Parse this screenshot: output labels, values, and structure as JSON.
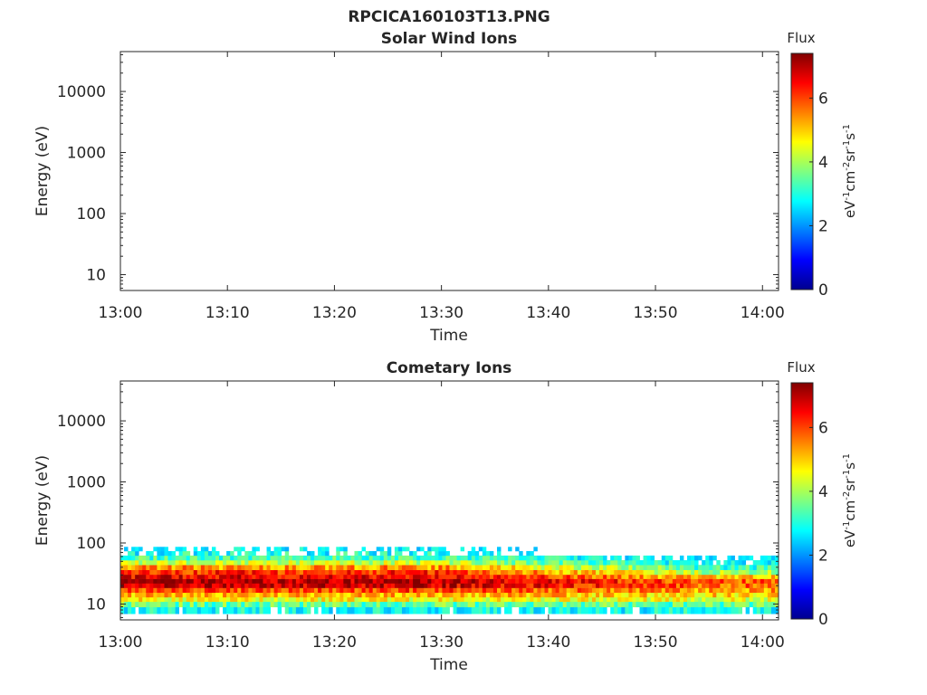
{
  "figure": {
    "title": "RPCICA160103T13.PNG"
  },
  "panels": [
    {
      "title": "Solar Wind Ions",
      "xlabel": "Time",
      "ylabel": "Energy (eV)",
      "colorbar": {
        "title": "Flux",
        "unit_base": [
          "eV",
          "cm",
          "sr",
          "s"
        ],
        "unit_exp": [
          "-1",
          "-2",
          "-1",
          "-1"
        ],
        "ticks": [
          "0",
          "2",
          "4",
          "6"
        ]
      }
    },
    {
      "title": "Cometary Ions",
      "xlabel": "Time",
      "ylabel": "Energy (eV)",
      "colorbar": {
        "title": "Flux",
        "unit_base": [
          "eV",
          "cm",
          "sr",
          "s"
        ],
        "unit_exp": [
          "-1",
          "-2",
          "-1",
          "-1"
        ],
        "ticks": [
          "0",
          "2",
          "4",
          "6"
        ]
      }
    }
  ],
  "chart_data": [
    {
      "type": "heatmap",
      "title": "Solar Wind Ions",
      "xlabel": "Time",
      "ylabel": "Energy (eV)",
      "x_ticks": [
        "13:00",
        "13:10",
        "13:20",
        "13:30",
        "13:40",
        "13:50",
        "14:00"
      ],
      "x_range_min": [
        0,
        61.5
      ],
      "y_scale": "log",
      "y_ticks": [
        10,
        100,
        1000,
        10000
      ],
      "y_tick_labels": [
        "10",
        "100",
        "1000",
        "10000"
      ],
      "ylim": [
        5.5,
        45000
      ],
      "colorbar": {
        "label": "Flux",
        "range": [
          0,
          7.4
        ],
        "ticks": [
          0,
          2,
          4,
          6
        ],
        "colormap": "jet"
      },
      "data": "empty"
    },
    {
      "type": "heatmap",
      "title": "Cometary Ions",
      "xlabel": "Time",
      "ylabel": "Energy (eV)",
      "x_ticks": [
        "13:00",
        "13:10",
        "13:20",
        "13:30",
        "13:40",
        "13:50",
        "14:00"
      ],
      "x_range_min": [
        0,
        61.5
      ],
      "y_scale": "log",
      "y_ticks": [
        10,
        100,
        1000,
        10000
      ],
      "y_tick_labels": [
        "10",
        "100",
        "1000",
        "10000"
      ],
      "ylim": [
        5.5,
        45000
      ],
      "colorbar": {
        "label": "Flux",
        "range": [
          0,
          7.4
        ],
        "ticks": [
          0,
          2,
          4,
          6
        ],
        "colormap": "jet"
      },
      "energy_profile_eV": [
        6,
        8,
        10,
        12,
        14,
        17,
        20,
        24,
        28,
        33,
        40,
        48,
        57,
        68,
        80
      ],
      "flux_profile_early": [
        0.5,
        2.8,
        3.5,
        4.6,
        5.2,
        6.0,
        6.8,
        7.0,
        6.6,
        6.2,
        5.4,
        4.2,
        3.3,
        2.9,
        2.5
      ],
      "flux_profile_late": [
        0.5,
        2.8,
        3.4,
        4.4,
        4.9,
        5.3,
        5.8,
        5.8,
        5.0,
        4.0,
        3.2,
        2.6,
        2.3,
        0,
        0
      ]
    }
  ],
  "colors": {
    "axis": "#262626",
    "jet": [
      "#00008f",
      "#0000ff",
      "#00ffff",
      "#ffff00",
      "#ff0000",
      "#800000"
    ]
  }
}
